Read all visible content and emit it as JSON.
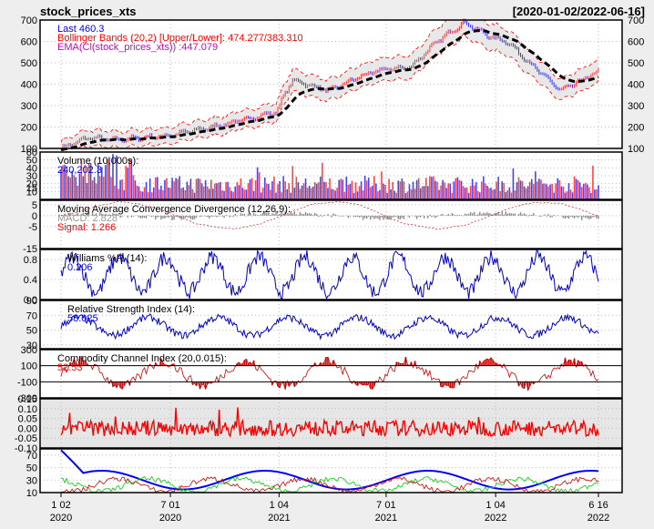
{
  "chart_data": {
    "type": "line",
    "title": "stock_prices_xts",
    "date_range": "[2020-01-02/2022-06-16]",
    "x_ticks": [
      {
        "top": "1 02",
        "bottom": "2020",
        "t": 0
      },
      {
        "top": "7 01",
        "bottom": "2020",
        "t": 0.2035
      },
      {
        "top": "1 04",
        "bottom": "2021",
        "t": 0.4057
      },
      {
        "top": "7 01",
        "bottom": "2021",
        "t": 0.6049
      },
      {
        "top": "1 04",
        "bottom": "2022",
        "t": 0.8087
      },
      {
        "top": "6 16",
        "bottom": "2022",
        "t": 1
      }
    ],
    "panels": [
      {
        "id": "price",
        "type": "candlestick",
        "ylim": [
          100,
          700
        ],
        "yticks": [
          100,
          200,
          300,
          400,
          500,
          600,
          700
        ],
        "right_axis": true,
        "legend": [
          {
            "text": "Last 460.3",
            "color": "#0000ff"
          },
          {
            "text": "Bollinger Bands (20,2) [Upper/Lower]: 474.277/383.310",
            "color": "#ff0000"
          },
          {
            "text": "EMA(Cl(stock_prices_xts)) :447.079",
            "color": "#cc00cc"
          }
        ],
        "close_path": [
          [
            0,
            100
          ],
          [
            0.05,
            150
          ],
          [
            0.1,
            140
          ],
          [
            0.2,
            160
          ],
          [
            0.3,
            210
          ],
          [
            0.4,
            270
          ],
          [
            0.43,
            420
          ],
          [
            0.47,
            390
          ],
          [
            0.5,
            370
          ],
          [
            0.55,
            430
          ],
          [
            0.6,
            470
          ],
          [
            0.65,
            480
          ],
          [
            0.7,
            600
          ],
          [
            0.75,
            690
          ],
          [
            0.8,
            620
          ],
          [
            0.83,
            600
          ],
          [
            0.88,
            480
          ],
          [
            0.93,
            370
          ],
          [
            0.97,
            420
          ],
          [
            1,
            460
          ]
        ]
      },
      {
        "id": "volume",
        "type": "bar",
        "ylim": [
          0,
          60
        ],
        "yticks": [
          10,
          15,
          20,
          30,
          40,
          50,
          60
        ],
        "legend": [
          {
            "text": "Volume (10,000s):",
            "color": "#000000"
          },
          {
            "text": "240,202.3",
            "color": "#0000ff"
          }
        ]
      },
      {
        "id": "macd",
        "type": "line",
        "ylim": [
          -15,
          7
        ],
        "yticks": [
          -15,
          -5,
          0,
          5
        ],
        "legend": [
          {
            "text": "Moving Average Convergence Divergence (12,26,9):",
            "color": "#000000"
          },
          {
            "text": "MACD: 2.828",
            "color": "#999999"
          },
          {
            "text": "Signal: 1.266",
            "color": "#ff0000"
          }
        ]
      },
      {
        "id": "williams",
        "type": "line",
        "ylim": [
          0,
          1
        ],
        "yticks": [
          0.0,
          0.4,
          0.8
        ],
        "legend": [
          {
            "text": "Williams %R (14):",
            "color": "#000000"
          },
          {
            "text": "0.206",
            "color": "#0000ff"
          }
        ]
      },
      {
        "id": "rsi",
        "type": "line",
        "ylim": [
          25,
          90
        ],
        "yticks": [
          30,
          50,
          70,
          90
        ],
        "legend": [
          {
            "text": "Relative Strength Index (14):",
            "color": "#000000"
          },
          {
            "text": "58.025",
            "color": "#0000ff"
          }
        ]
      },
      {
        "id": "cci",
        "type": "line",
        "ylim": [
          -300,
          300
        ],
        "yticks": [
          -300,
          -100,
          100,
          300
        ],
        "legend": [
          {
            "text": "Commodity Channel Index (20,0.015):",
            "color": "#000000"
          },
          {
            "text": "52.53",
            "color": "#ff0000"
          }
        ]
      },
      {
        "id": "returns",
        "type": "line",
        "ylim": [
          -0.1,
          0.15
        ],
        "yticks": [
          -0.1,
          -0.05,
          0.0,
          0.05,
          0.1,
          0.15
        ],
        "legend": []
      },
      {
        "id": "adx",
        "type": "line",
        "ylim": [
          10,
          80
        ],
        "yticks": [
          10,
          30,
          50,
          70
        ],
        "legend": []
      }
    ]
  }
}
